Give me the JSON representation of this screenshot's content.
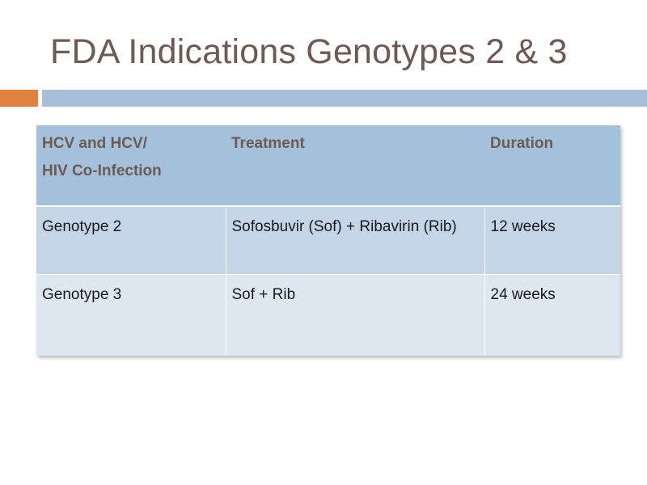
{
  "slide": {
    "title": "FDA Indications Genotypes 2 & 3"
  },
  "table": {
    "headers": [
      [
        "HCV and HCV/",
        "HIV Co-Infection"
      ],
      "Treatment",
      "Duration"
    ],
    "rows": [
      [
        "Genotype 2",
        "Sofosbuvir (Sof) + Ribavirin (Rib)",
        "12 weeks"
      ],
      [
        "Genotype 3",
        "Sof + Rib",
        "24 weeks"
      ]
    ]
  },
  "colors": {
    "title": "#6e5a52",
    "accent_orange": "#e0823f",
    "accent_blue": "#a7c0d8",
    "header_bg": "#a3c1da",
    "row1_bg": "#c3d5e6",
    "row2_bg": "#dde7f0"
  }
}
